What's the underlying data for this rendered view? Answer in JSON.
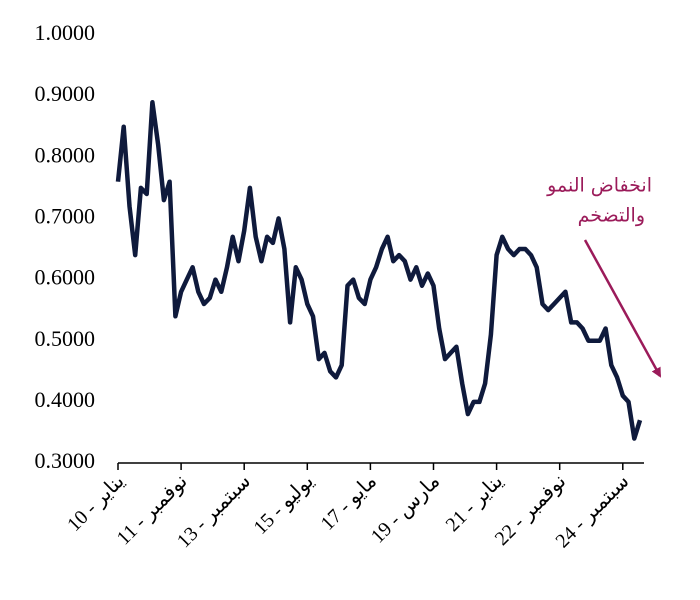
{
  "chart_data": {
    "type": "line",
    "categories": [
      "يناير - 10",
      null,
      null,
      null,
      null,
      null,
      null,
      null,
      null,
      null,
      null,
      "نوفمبر - 11",
      null,
      null,
      null,
      null,
      null,
      null,
      null,
      null,
      null,
      null,
      "سبتمبر - 13",
      null,
      null,
      null,
      null,
      null,
      null,
      null,
      null,
      null,
      null,
      "يوليو - 15",
      null,
      null,
      null,
      null,
      null,
      null,
      null,
      null,
      null,
      null,
      "مايو - 17",
      null,
      null,
      null,
      null,
      null,
      null,
      null,
      null,
      null,
      null,
      "مارس - 19",
      null,
      null,
      null,
      null,
      null,
      null,
      null,
      null,
      null,
      null,
      "يناير - 21",
      null,
      null,
      null,
      null,
      null,
      null,
      null,
      null,
      null,
      null,
      "نوفمبر - 22",
      null,
      null,
      null,
      null,
      null,
      null,
      null,
      null,
      null,
      null,
      "سبتمبر - 24",
      null,
      null,
      null
    ],
    "series": [
      {
        "color": "#0f1a3c",
        "values": [
          0.76,
          0.85,
          0.72,
          0.64,
          0.75,
          0.74,
          0.89,
          0.82,
          0.73,
          0.76,
          0.54,
          0.58,
          0.6,
          0.62,
          0.58,
          0.56,
          0.57,
          0.6,
          0.58,
          0.62,
          0.67,
          0.63,
          0.68,
          0.75,
          0.67,
          0.63,
          0.67,
          0.66,
          0.7,
          0.65,
          0.53,
          0.62,
          0.6,
          0.56,
          0.54,
          0.47,
          0.48,
          0.45,
          0.44,
          0.46,
          0.59,
          0.6,
          0.57,
          0.56,
          0.6,
          0.62,
          0.65,
          0.67,
          0.63,
          0.64,
          0.63,
          0.6,
          0.62,
          0.59,
          0.61,
          0.59,
          0.52,
          0.47,
          0.48,
          0.49,
          0.43,
          0.38,
          0.4,
          0.4,
          0.43,
          0.51,
          0.64,
          0.67,
          0.65,
          0.64,
          0.65,
          0.65,
          0.64,
          0.62,
          0.56,
          0.55,
          0.56,
          0.57,
          0.58,
          0.53,
          0.53,
          0.52,
          0.5,
          0.5,
          0.5,
          0.52,
          0.46,
          0.44,
          0.41,
          0.4,
          0.34,
          0.37
        ]
      }
    ],
    "ylim": [
      0.3,
      1.0
    ],
    "yticks": [
      {
        "value": 0.3,
        "label": "0.3000"
      },
      {
        "value": 0.4,
        "label": "0.4000"
      },
      {
        "value": 0.5,
        "label": "0.5000"
      },
      {
        "value": 0.6,
        "label": "0.6000"
      },
      {
        "value": 0.7,
        "label": "0.7000"
      },
      {
        "value": 0.8,
        "label": "0.8000"
      },
      {
        "value": 0.9,
        "label": "0.9000"
      },
      {
        "value": 1.0,
        "label": "1.0000"
      }
    ],
    "annotation": [
      "انخفاض النمو",
      "والتضخم"
    ],
    "annotation_color": "#9b1b5a"
  }
}
